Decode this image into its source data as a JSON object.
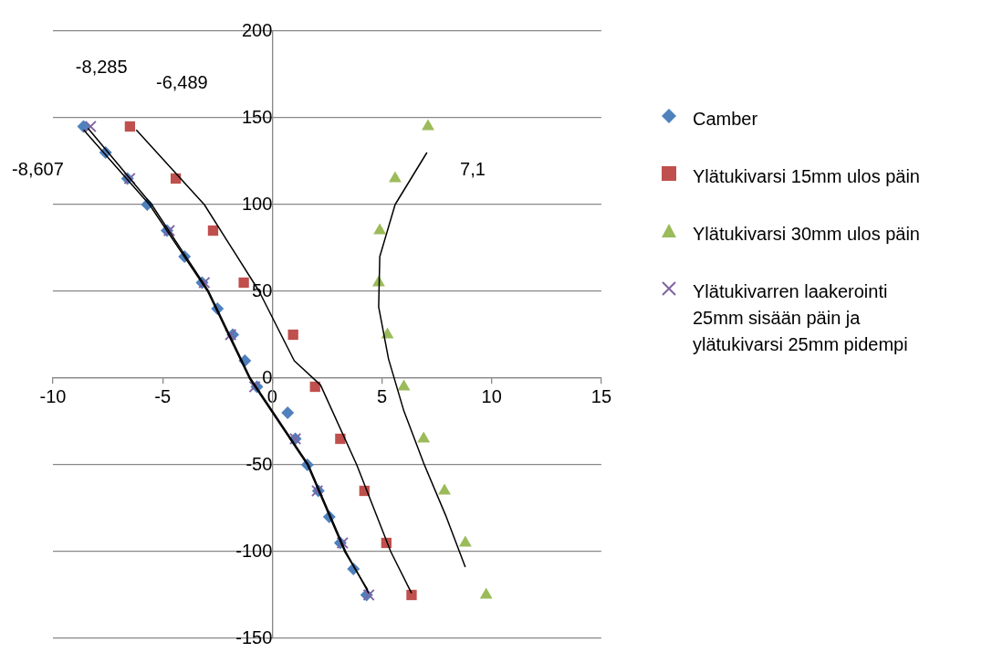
{
  "chart_data": {
    "type": "scatter",
    "xlim": [
      -10,
      15
    ],
    "xticks": [
      -10,
      -5,
      0,
      5,
      10,
      15
    ],
    "ylim": [
      -150,
      200
    ],
    "yticks": [
      -150,
      -100,
      -50,
      0,
      50,
      100,
      150,
      200
    ],
    "grid": "y",
    "legend": "right",
    "series": [
      {
        "name": "Camber",
        "type": "scatter",
        "marker": "diamond",
        "color": "#4f81bd",
        "x": [
          -8.607,
          -7.6,
          -6.6,
          -5.7,
          -4.8,
          -4.0,
          -3.2,
          -2.5,
          -1.8,
          -1.25,
          -0.7,
          0.7,
          1.05,
          1.6,
          2.1,
          2.6,
          3.1,
          3.7,
          4.3
        ],
        "values": [
          145,
          130,
          115,
          100,
          85,
          70,
          55,
          40,
          25,
          10,
          -5,
          -20,
          -35,
          -50,
          -65,
          -80,
          -95,
          -110,
          -125
        ]
      },
      {
        "name": "Ylätukivarsi 15mm ulos päin",
        "type": "scatter",
        "marker": "square",
        "color": "#c0504d",
        "x": [
          -6.489,
          -4.4,
          -2.7,
          -1.3,
          0.95,
          1.95,
          3.1,
          4.2,
          5.2,
          6.35
        ],
        "values": [
          145,
          115,
          85,
          55,
          25,
          -5,
          -35,
          -65,
          -95,
          -125
        ]
      },
      {
        "name": "Ylätukivarsi 30mm ulos päin",
        "type": "scatter",
        "marker": "triangle",
        "color": "#9bbb59",
        "x": [
          7.1,
          5.6,
          4.9,
          4.85,
          5.25,
          6.0,
          6.9,
          7.85,
          8.8,
          9.75
        ],
        "values": [
          145,
          115,
          85,
          55,
          25,
          -5,
          -35,
          -65,
          -95,
          -125
        ]
      },
      {
        "name": "Ylätukivarren laakerointi 25mm sisään päin ja ylätukivarsi 25mm pidempi",
        "type": "scatter",
        "marker": "cross",
        "color": "#8064a2",
        "x": [
          -8.285,
          -6.5,
          -4.7,
          -3.1,
          -1.9,
          -0.8,
          1.05,
          2.05,
          3.2,
          4.4
        ],
        "values": [
          145,
          115,
          85,
          55,
          25,
          -5,
          -35,
          -65,
          -95,
          -125
        ]
      },
      {
        "type": "line",
        "marker": "none",
        "color": "#000000",
        "x": [
          -8.6,
          -5.6,
          -2.95,
          -1.05,
          1.6,
          3.3,
          4.35
        ],
        "values": [
          143,
          100,
          50,
          0,
          -50,
          -100,
          -122
        ]
      },
      {
        "type": "line",
        "marker": "none",
        "color": "#000000",
        "x": [
          -8.4,
          -5.5,
          -2.9,
          -1.0,
          1.65,
          3.35,
          4.4
        ],
        "values": [
          144,
          100,
          50,
          0,
          -50,
          -100,
          -124
        ]
      },
      {
        "type": "line",
        "marker": "none",
        "color": "#000000",
        "x": [
          -6.2,
          -3.1,
          -0.6,
          1.0,
          2.2,
          3.85,
          5.4,
          6.35
        ],
        "values": [
          143,
          100,
          50,
          10,
          -4,
          -50,
          -100,
          -124
        ]
      },
      {
        "type": "line",
        "marker": "none",
        "color": "#000000",
        "x": [
          7.05,
          5.6,
          4.9,
          4.85,
          5.3,
          6.0,
          6.9,
          7.9,
          8.8
        ],
        "values": [
          130,
          100,
          70,
          41,
          11,
          -19,
          -49,
          -79,
          -109
        ]
      }
    ],
    "annotations": [
      {
        "text": "-8,285",
        "x": -8.285,
        "y": 145
      },
      {
        "text": "-6,489",
        "x": -6.489,
        "y": 145
      },
      {
        "text": "-8,607",
        "x": -8.607,
        "y": 145
      },
      {
        "text": "7,1",
        "x": 7.1,
        "y": 145
      }
    ]
  }
}
